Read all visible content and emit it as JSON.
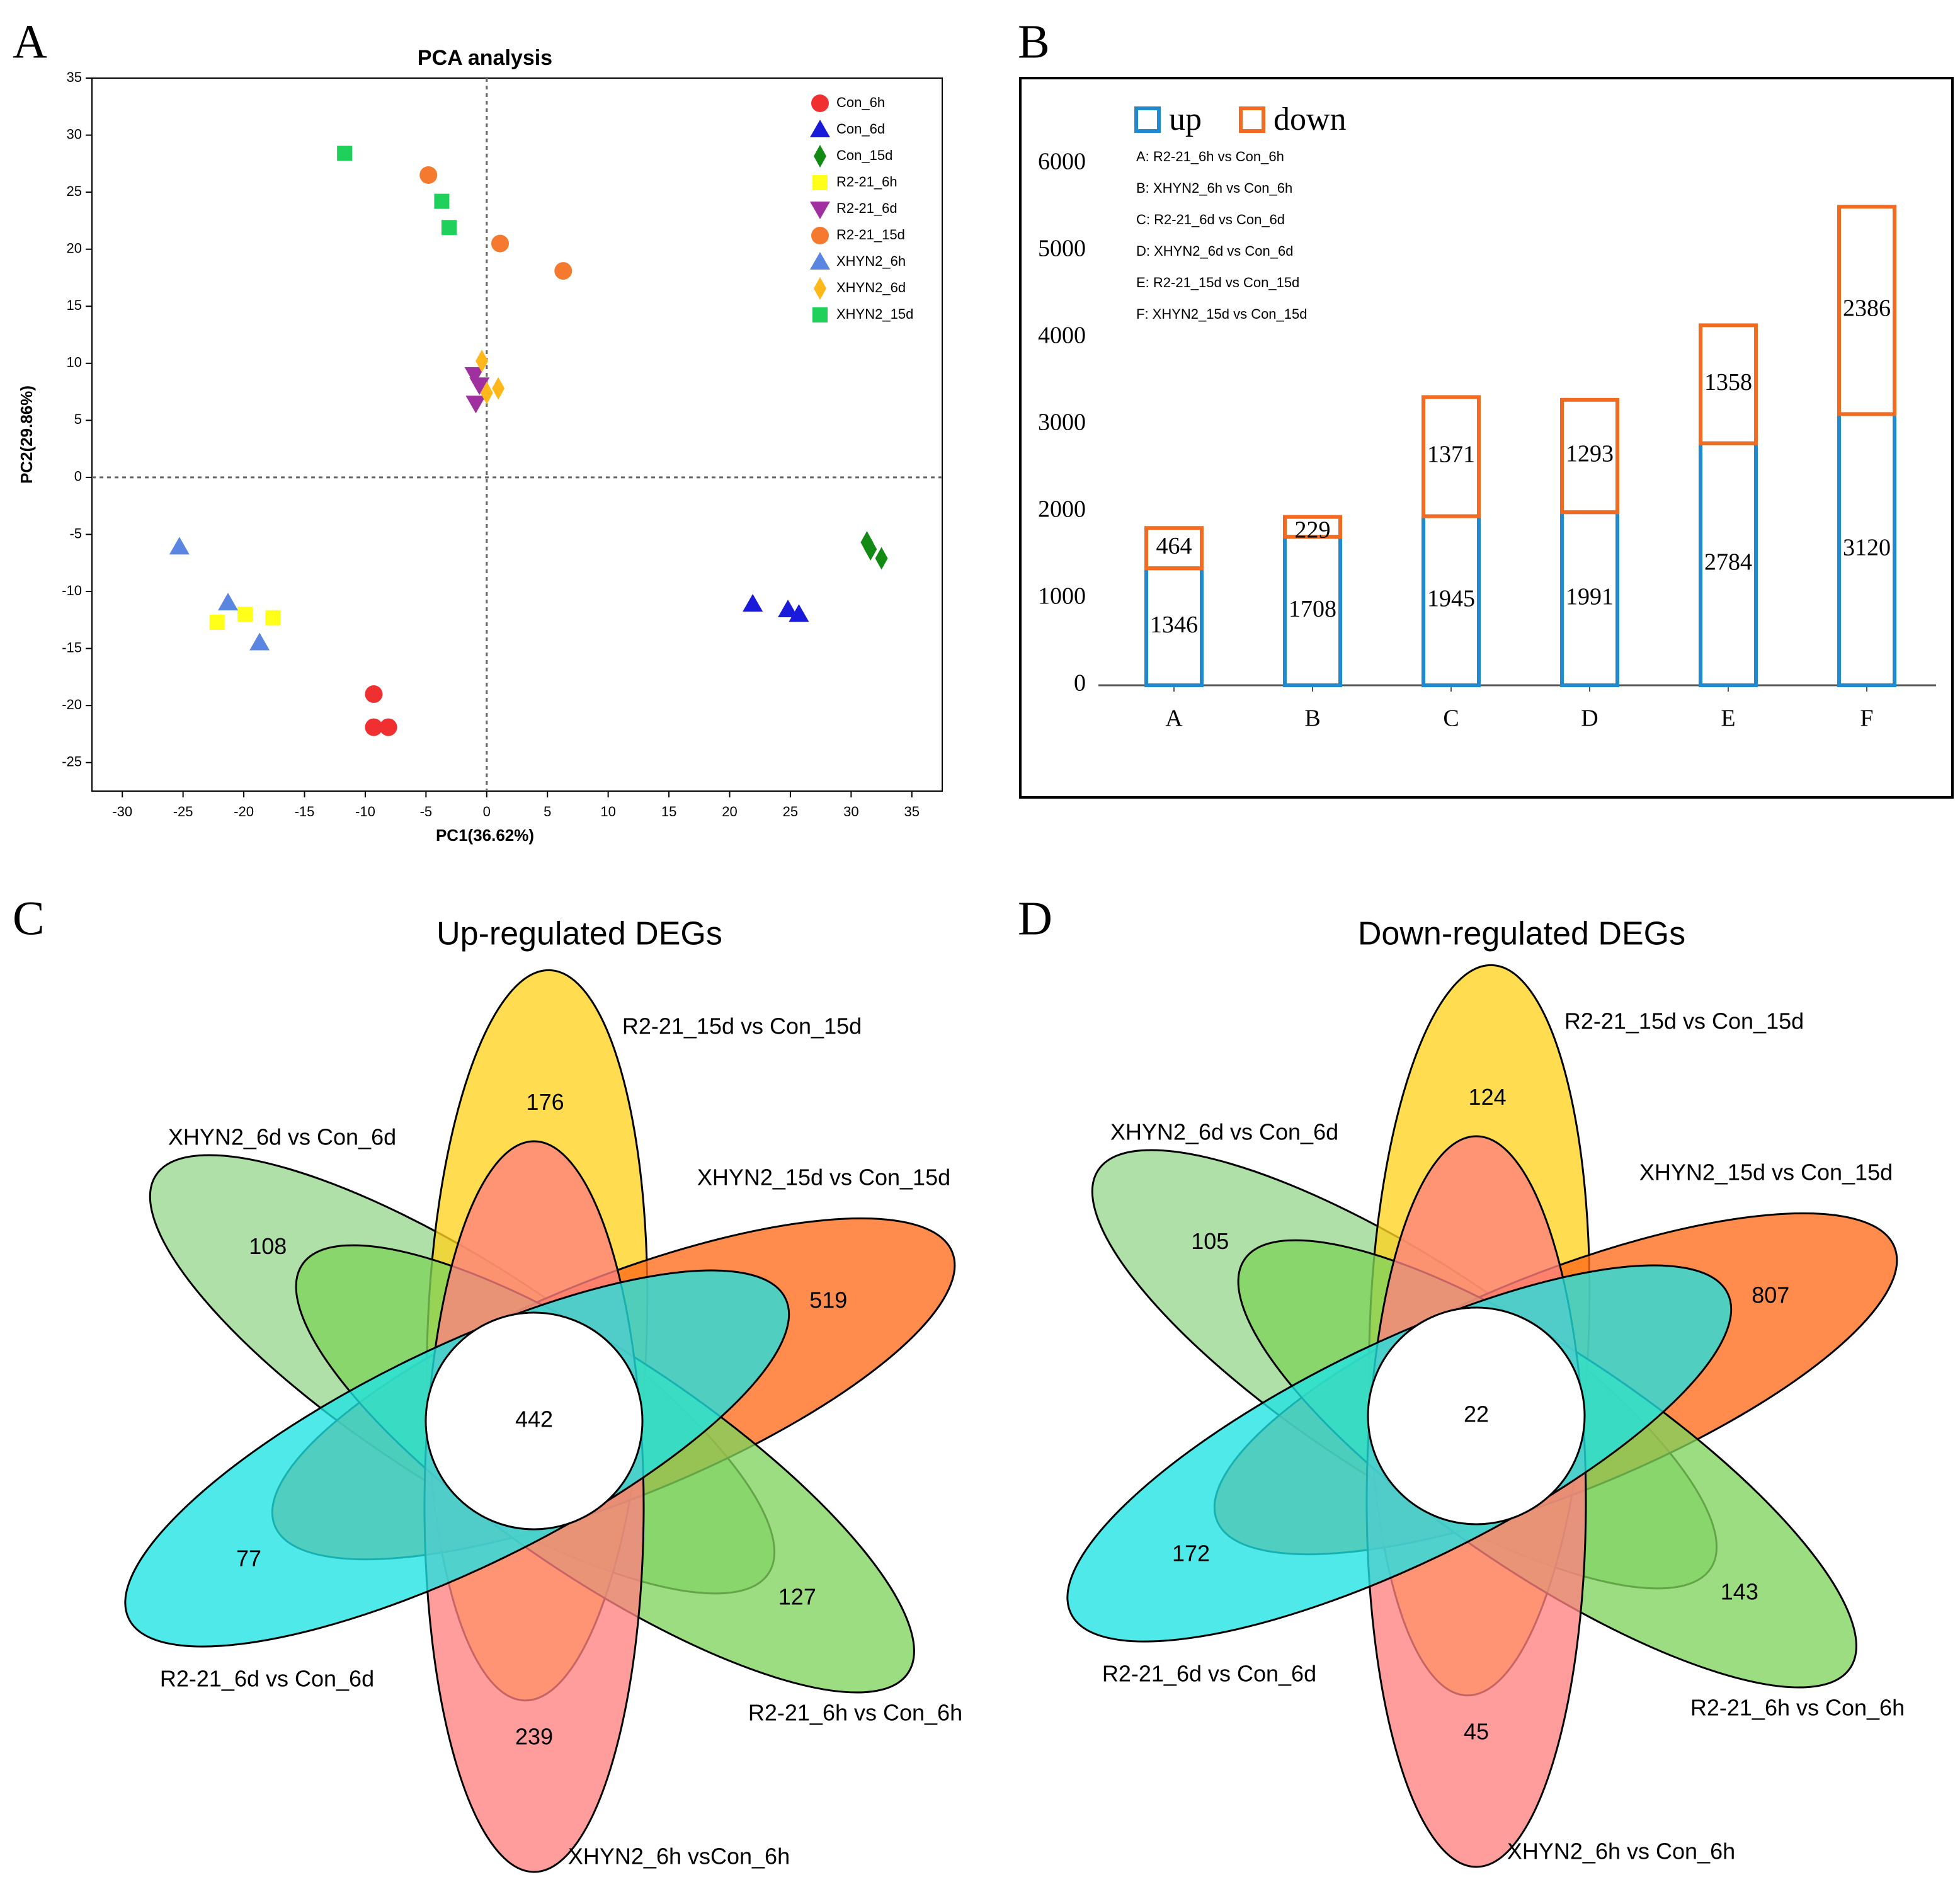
{
  "chart_data": [
    {
      "type": "scatter",
      "panel": "A",
      "title": "PCA analysis",
      "xlabel": "PC1(36.62%)",
      "ylabel": "PC2(29.86%)",
      "xlim": [
        -32.5,
        37.5
      ],
      "ylim": [
        -27.5,
        35
      ],
      "xticks": [
        -30,
        -25,
        -20,
        -15,
        -10,
        -5,
        0,
        5,
        10,
        15,
        20,
        25,
        30,
        35
      ],
      "yticks": [
        -25,
        -20,
        -15,
        -10,
        -5,
        0,
        5,
        10,
        15,
        20,
        25,
        30,
        35
      ],
      "zero_lines": true,
      "legend": "top-right",
      "series": [
        {
          "name": "Con_6h",
          "color": "#f03030",
          "marker": "circle",
          "x": [
            -9.3,
            -9.3,
            -8.1
          ],
          "y": [
            -19.0,
            -21.9,
            -21.9
          ]
        },
        {
          "name": "Con_6d",
          "color": "#1a1adb",
          "marker": "triangle",
          "x": [
            21.9,
            24.8,
            25.7
          ],
          "y": [
            -11.1,
            -11.6,
            -12.0
          ]
        },
        {
          "name": "Con_15d",
          "color": "#138a13",
          "marker": "diamond",
          "x": [
            31.3,
            31.6,
            32.5
          ],
          "y": [
            -5.7,
            -6.3,
            -7.1
          ]
        },
        {
          "name": "R2-21_6h",
          "color": "#ffff1a",
          "marker": "square",
          "x": [
            -22.2,
            -19.9,
            -17.6
          ],
          "y": [
            -12.7,
            -12.0,
            -12.3
          ]
        },
        {
          "name": "R2-21_6d",
          "color": "#a0309f",
          "marker": "triangle-down",
          "x": [
            -1.0,
            -0.6,
            -0.9
          ],
          "y": [
            9.0,
            8.1,
            6.5
          ]
        },
        {
          "name": "R2-21_15d",
          "color": "#f5792f",
          "marker": "circle",
          "x": [
            -4.8,
            1.1,
            6.3
          ],
          "y": [
            26.5,
            20.5,
            18.1
          ]
        },
        {
          "name": "XHYN2_6h",
          "color": "#5a85e0",
          "marker": "triangle",
          "x": [
            -25.3,
            -21.3,
            -18.7
          ],
          "y": [
            -6.1,
            -11.0,
            -14.5
          ]
        },
        {
          "name": "XHYN2_6d",
          "color": "#ffb71a",
          "marker": "diamond",
          "x": [
            -0.4,
            0,
            0.95
          ],
          "y": [
            10.2,
            7.4,
            7.8
          ]
        },
        {
          "name": "XHYN2_15d",
          "color": "#1fd05a",
          "marker": "square",
          "x": [
            -11.7,
            -3.7,
            -3.1
          ],
          "y": [
            28.4,
            24.2,
            21.9
          ]
        }
      ]
    },
    {
      "type": "bar",
      "panel": "B",
      "stacked": true,
      "categories": [
        "A",
        "B",
        "C",
        "D",
        "E",
        "F"
      ],
      "ylim": [
        0,
        6000
      ],
      "yticks": [
        0,
        1000,
        2000,
        3000,
        4000,
        5000,
        6000
      ],
      "series": [
        {
          "name": "up",
          "color": "#1f8ad0",
          "values": [
            1346,
            1708,
            1945,
            1991,
            2784,
            3120
          ]
        },
        {
          "name": "down",
          "color": "#f26b21",
          "values": [
            464,
            229,
            1371,
            1293,
            1358,
            2386
          ]
        }
      ],
      "annotations": [
        "A: R2-21_6h vs Con_6h",
        "B: XHYN2_6h vs Con_6h",
        "C: R2-21_6d vs Con_6d",
        "D: XHYN2_6d vs Con_6d",
        "E: R2-21_15d vs Con_15d",
        "F: XHYN2_15d vs Con_15d"
      ]
    },
    {
      "type": "venn",
      "panel": "C",
      "title": "Up-regulated DEGs",
      "intersection": 442,
      "sets": [
        {
          "name": "XHYN2_6d vs Con_6d",
          "color": "#98d78f",
          "value": 108
        },
        {
          "name": "R2-21_15d vs Con_15d",
          "color": "#ffd21f",
          "value": 176
        },
        {
          "name": "XHYN2_15d vs Con_15d",
          "color": "#ff6a1a",
          "value": 519
        },
        {
          "name": "R2-21_6h vs Con_6h",
          "color": "#7fd45c",
          "value": 127
        },
        {
          "name": "XHYN2_6h vsCon_6h",
          "color": "#ff8080",
          "value": 239
        },
        {
          "name": "R2-21_6d vs Con_6d",
          "color": "#1fe3e3",
          "value": 77
        }
      ]
    },
    {
      "type": "venn",
      "panel": "D",
      "title": "Down-regulated DEGs",
      "intersection": 22,
      "sets": [
        {
          "name": "XHYN2_6d vs Con_6d",
          "color": "#98d78f",
          "value": 105
        },
        {
          "name": "R2-21_15d vs Con_15d",
          "color": "#ffd21f",
          "value": 124
        },
        {
          "name": "XHYN2_15d vs Con_15d",
          "color": "#ff6a1a",
          "value": 807
        },
        {
          "name": "R2-21_6h vs Con_6h",
          "color": "#7fd45c",
          "value": 143
        },
        {
          "name": "XHYN2_6h vs Con_6h",
          "color": "#ff8080",
          "value": 45
        },
        {
          "name": "R2-21_6d vs Con_6d",
          "color": "#1fe3e3",
          "value": 172
        }
      ]
    }
  ]
}
